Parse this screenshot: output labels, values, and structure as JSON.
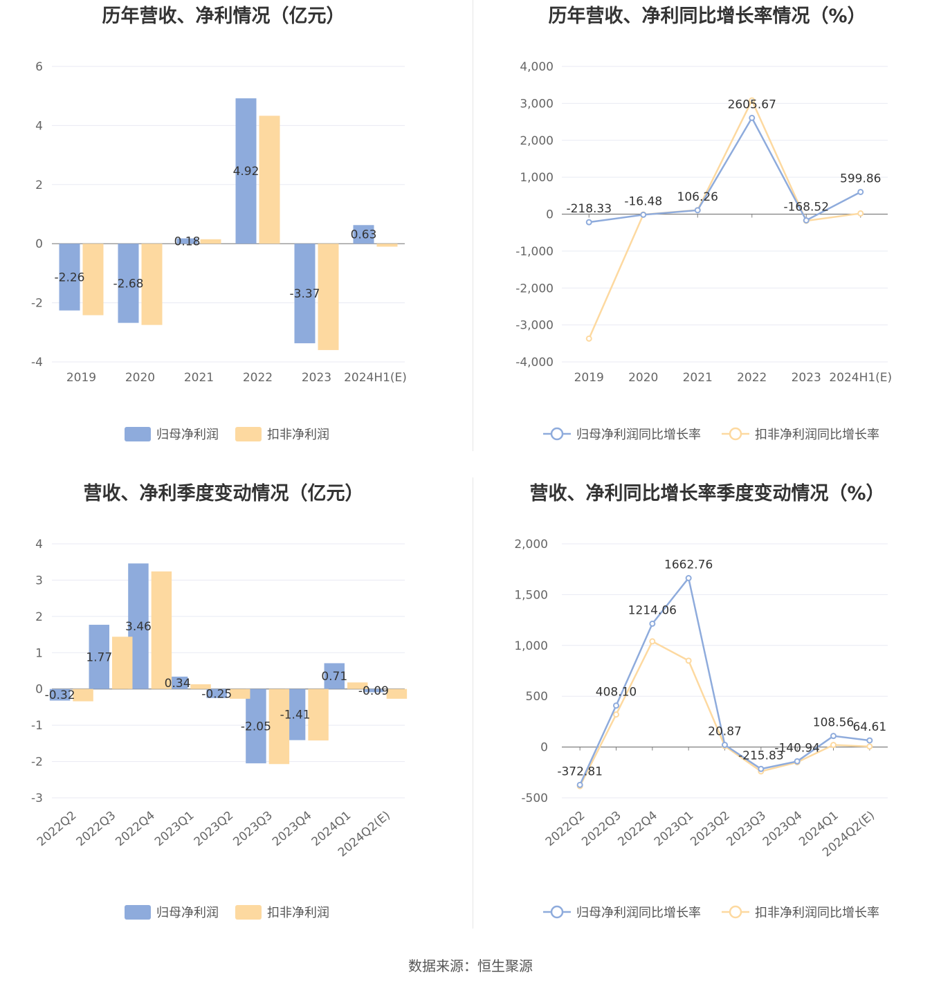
{
  "source": "数据来源：恒生聚源",
  "colors": {
    "net_profit": "#8eabdc",
    "deducted_profit": "#fdd9a0",
    "axis": "#7f7f7f",
    "grid": "#e8eaf3"
  },
  "chart_data": [
    {
      "type": "bar",
      "title": "历年营收、净利情况（亿元）",
      "categories": [
        "2019",
        "2020",
        "2021",
        "2022",
        "2023",
        "2024H1(E)"
      ],
      "ylim": [
        -4,
        6
      ],
      "yticks": [
        -4,
        -2,
        0,
        2,
        4,
        6
      ],
      "series": [
        {
          "name": "归母净利润",
          "values": [
            -2.26,
            -2.68,
            0.18,
            4.92,
            -3.37,
            0.63
          ]
        },
        {
          "name": "扣非净利润",
          "values": [
            -2.42,
            -2.75,
            0.15,
            4.33,
            -3.6,
            -0.1
          ]
        }
      ],
      "data_labels": [
        "-2.26",
        "-2.68",
        "0.18",
        "4.92",
        "-3.37",
        "0.63"
      ],
      "legend": "bottom"
    },
    {
      "type": "line",
      "title": "历年营收、净利同比增长率情况（%）",
      "categories": [
        "2019",
        "2020",
        "2021",
        "2022",
        "2023",
        "2024H1(E)"
      ],
      "ylim": [
        -4000,
        4000
      ],
      "yticks": [
        -4000,
        -3000,
        -2000,
        -1000,
        0,
        1000,
        2000,
        3000,
        4000
      ],
      "ytick_labels": [
        "-4,000",
        "-3,000",
        "-2,000",
        "-1,000",
        "0",
        "1,000",
        "2,000",
        "3,000",
        "4,000"
      ],
      "series": [
        {
          "name": "归母净利润同比增长率",
          "values": [
            -218.33,
            -16.48,
            106.26,
            2605.67,
            -168.52,
            599.86
          ]
        },
        {
          "name": "扣非净利润同比增长率",
          "values": [
            -3370,
            -10,
            110,
            3080,
            -180,
            20
          ]
        }
      ],
      "data_labels": [
        "-218.33",
        "-16.48",
        "106.26",
        "2605.67",
        "-168.52",
        "599.86"
      ],
      "legend": "bottom"
    },
    {
      "type": "bar",
      "title": "营收、净利季度变动情况（亿元）",
      "categories": [
        "2022Q2",
        "2022Q3",
        "2022Q4",
        "2023Q1",
        "2023Q2",
        "2023Q3",
        "2023Q4",
        "2024Q1",
        "2024Q2(E)"
      ],
      "ylim": [
        -3,
        4
      ],
      "yticks": [
        -3,
        -2,
        -1,
        0,
        1,
        2,
        3,
        4
      ],
      "series": [
        {
          "name": "归母净利润",
          "values": [
            -0.32,
            1.77,
            3.46,
            0.34,
            -0.25,
            -2.05,
            -1.41,
            0.71,
            -0.09
          ]
        },
        {
          "name": "扣非净利润",
          "values": [
            -0.34,
            1.44,
            3.24,
            0.13,
            -0.27,
            -2.07,
            -1.42,
            0.18,
            -0.27
          ]
        }
      ],
      "data_labels": [
        "-0.32",
        "1.77",
        "3.46",
        "0.34",
        "-0.25",
        "-2.05",
        "-1.41",
        "0.71",
        "-0.09"
      ],
      "legend": "bottom"
    },
    {
      "type": "line",
      "title": "营收、净利同比增长率季度变动情况（%）",
      "categories": [
        "2022Q2",
        "2022Q3",
        "2022Q4",
        "2023Q1",
        "2023Q2",
        "2023Q3",
        "2023Q4",
        "2024Q1",
        "2024Q2(E)"
      ],
      "ylim": [
        -500,
        2000
      ],
      "yticks": [
        -500,
        0,
        500,
        1000,
        1500,
        2000
      ],
      "ytick_labels": [
        "-500",
        "0",
        "500",
        "1,000",
        "1,500",
        "2,000"
      ],
      "series": [
        {
          "name": "归母净利润同比增长率",
          "values": [
            -372.81,
            408.1,
            1214.06,
            1662.76,
            20.87,
            -215.83,
            -140.94,
            108.56,
            64.61
          ]
        },
        {
          "name": "扣非净利润同比增长率",
          "values": [
            -385,
            320,
            1040,
            850,
            10,
            -240,
            -150,
            20,
            5
          ]
        }
      ],
      "data_labels": [
        "-372.81",
        "408.10",
        "1214.06",
        "1662.76",
        "20.87",
        "-215.83",
        "-140.94",
        "108.56",
        "64.61"
      ],
      "legend": "bottom"
    }
  ]
}
